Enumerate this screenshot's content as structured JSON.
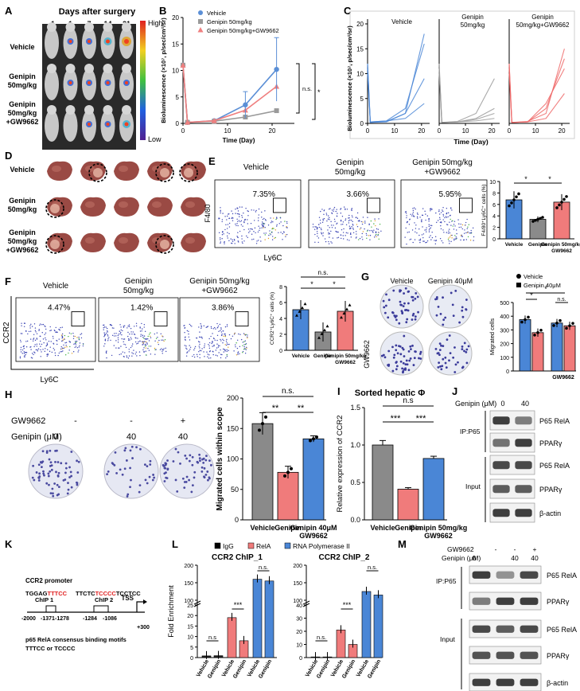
{
  "panels": {
    "A": {
      "letter": "A",
      "header": "Days after surgery",
      "days": [
        "-1",
        "1",
        "7",
        "14",
        "21"
      ],
      "rows": [
        "Vehicle",
        "Genipin\n50mg/kg",
        "Genipin\n50mg/kg\n+GW9662"
      ],
      "scale_high": "High",
      "scale_low": "Low"
    },
    "B": {
      "letter": "B"
    },
    "C": {
      "letter": "C"
    },
    "D": {
      "letter": "D",
      "rows": [
        "Vehicle",
        "Genipin\n50mg/kg",
        "Genipin\n50mg/kg\n+GW9662"
      ]
    },
    "E": {
      "letter": "E",
      "x_axis": "Ly6C",
      "y_axis": "F4/80",
      "groups": [
        "Vehicle",
        "Genipin\n50mg/kg",
        "Genipin 50mg/kg\n+GW9662"
      ],
      "percents": [
        "7.35%",
        "3.66%",
        "5.95%"
      ]
    },
    "F": {
      "letter": "F",
      "x_axis": "Ly6C",
      "y_axis": "CCR2",
      "groups": [
        "Vehicle",
        "Genipin\n50mg/kg",
        "Genipin 50mg/kg\n+GW9662"
      ],
      "percents": [
        "4.47%",
        "1.42%",
        "3.86%"
      ]
    },
    "G": {
      "letter": "G",
      "col_labels": [
        "Vehicle",
        "Genipin 40μM"
      ],
      "row_label": "GW9662"
    },
    "H": {
      "letter": "H",
      "gw_label": "GW9662",
      "genipin_label": "Genipin (μM)",
      "gw_values": [
        "-",
        "-",
        "+"
      ],
      "genipin_values": [
        "0",
        "40",
        "40"
      ]
    },
    "I": {
      "letter": "I"
    },
    "J": {
      "letter": "J",
      "genipin_label": "Genipin (μM)",
      "lanes": [
        "0",
        "40"
      ],
      "ip_label": "IP:P65",
      "input_label": "Input",
      "bands": [
        "P65 RelA",
        "PPARγ",
        "P65 RelA",
        "PPARγ",
        "β-actin"
      ]
    },
    "K": {
      "letter": "K",
      "promoter": "CCR2 promoter",
      "chip1_seq_a": "TGGAG",
      "chip1_seq_b": "TTTCC",
      "chip1_label": "ChIP 1",
      "chip2_seq_a": "TTCTC",
      "chip2_seq_b": "TCCCC",
      "chip2_seq_c": "TCCTCC",
      "chip2_label": "ChIP 2",
      "tss": "TSS",
      "positions": [
        "-2000",
        "-1371",
        "-1278",
        "-1284",
        "-1086",
        "+300"
      ],
      "motif_line1": "p65 RelA consensus binding motifs",
      "motif_line2": "TTTCC or TCCCC"
    },
    "L": {
      "letter": "L"
    },
    "M": {
      "letter": "M",
      "gw_label": "GW9662",
      "genipin_label": "Genipin (μM)",
      "gw_values": [
        "-",
        "-",
        "+"
      ],
      "genipin_values": [
        "0",
        "40",
        "40"
      ],
      "ip_label": "IP:P65",
      "input_label": "Input",
      "bands": [
        "P65 RelA",
        "PPARγ",
        "P65 RelA",
        "PPARγ",
        "β-actin"
      ]
    }
  },
  "colors": {
    "vehicle": "#5b8fd6",
    "genipin": "#9a9a9a",
    "gw": "#ef7f7f",
    "blue_bar": "#4a86d6",
    "red_bar": "#f07b7b",
    "grey_bar": "#8a8a8a"
  },
  "chart_data": [
    {
      "id": "B",
      "type": "line",
      "xlabel": "Time (Day)",
      "ylabel": "Bioluminescence (×10⁷, p/sec/cm²/sr)",
      "xlim": [
        0,
        25
      ],
      "ylim": [
        0,
        20
      ],
      "x_ticks": [
        "0",
        "10",
        "20"
      ],
      "y_ticks": [
        "0",
        "5",
        "10",
        "15",
        "20"
      ],
      "x": [
        0,
        1,
        7,
        14,
        21
      ],
      "series": [
        {
          "name": "Vehicle",
          "values": [
            11,
            0.2,
            0.5,
            3.5,
            10.2
          ]
        },
        {
          "name": "Genipin 50mg/kg",
          "values": [
            11,
            0.2,
            0.4,
            1.2,
            2.4
          ]
        },
        {
          "name": "Genipin 50mg/kg+GW9662",
          "values": [
            11,
            0.2,
            0.5,
            2.5,
            7.0
          ]
        }
      ],
      "annotations": [
        "n.s.",
        "*"
      ]
    },
    {
      "id": "C",
      "type": "line",
      "ylabel": "Bioluminescence (×10⁷, p/sec/cm²/sr)",
      "xlabel": "Time (Day)",
      "ylim": [
        0,
        20
      ],
      "y_ticks": [
        "0",
        "5",
        "10",
        "15",
        "20"
      ],
      "x_ticks": [
        "0",
        "10",
        "20"
      ],
      "subplots": [
        {
          "title": "Vehicle",
          "lines": [
            [
              12,
              0.3,
              0.5,
              1,
              4
            ],
            [
              11,
              0.2,
              0.4,
              2,
              9
            ],
            [
              10,
              0.3,
              0.5,
              3,
              16
            ],
            [
              12,
              0.2,
              0.3,
              2,
              18
            ]
          ]
        },
        {
          "title": "Genipin\n50mg/kg",
          "lines": [
            [
              12,
              0.2,
              0.3,
              0.5,
              1
            ],
            [
              11,
              0.2,
              0.3,
              0.8,
              2
            ],
            [
              10,
              0.2,
              0.3,
              1,
              3
            ],
            [
              11,
              0.2,
              0.4,
              2,
              9
            ]
          ]
        },
        {
          "title": "Genipin\n50mg/kg+GW9662",
          "lines": [
            [
              12,
              0.2,
              0.3,
              1,
              6
            ],
            [
              11,
              0.2,
              0.3,
              3,
              13
            ],
            [
              10,
              0.2,
              0.4,
              2,
              15
            ],
            [
              12,
              0.2,
              0.3,
              4,
              11
            ]
          ]
        }
      ],
      "x": [
        0,
        1,
        7,
        14,
        21
      ]
    },
    {
      "id": "E",
      "type": "bar",
      "ylabel": "F4/80⁺Ly6C⁺ cells (%)",
      "ylim": [
        0,
        10
      ],
      "y_ticks": [
        "0",
        "2",
        "4",
        "6",
        "8",
        "10"
      ],
      "categories": [
        "Vehicle",
        "Genipin",
        "Genipin 50mg/kg\nGW9662"
      ],
      "values": [
        6.8,
        3.4,
        6.4
      ],
      "errors": [
        1.5,
        0.5,
        1.4
      ],
      "sig": [
        "*",
        "*"
      ]
    },
    {
      "id": "F",
      "type": "bar",
      "ylabel": "CCR2⁺Ly6C⁺ cells (%)",
      "ylim": [
        0,
        8
      ],
      "y_ticks": [
        "0",
        "2",
        "4",
        "6",
        "8"
      ],
      "categories": [
        "Vehicle",
        "Genipin",
        "Genipin 50mg/kg\nGW9662"
      ],
      "values": [
        5.1,
        2.3,
        4.9
      ],
      "errors": [
        1.2,
        1.2,
        1.3
      ],
      "sig": [
        "*",
        "*",
        "n.s."
      ]
    },
    {
      "id": "G",
      "type": "bar",
      "ylabel": "Migrated cells",
      "ylim": [
        0,
        500
      ],
      "y_ticks": [
        "0",
        "100",
        "200",
        "300",
        "400",
        "500"
      ],
      "legend": [
        "Vehicle",
        "Genipin 40μM"
      ],
      "categories": [
        "",
        "GW9662"
      ],
      "series": [
        {
          "name": "Vehicle",
          "values": [
            375,
            350
          ]
        },
        {
          "name": "Genipin 40μM",
          "values": [
            280,
            330
          ]
        }
      ],
      "sig": [
        "*",
        "*",
        "n.s."
      ]
    },
    {
      "id": "H",
      "type": "bar",
      "ylabel": "Migrated cells within scope",
      "ylim": [
        0,
        200
      ],
      "y_ticks": [
        "0",
        "50",
        "100",
        "150",
        "200"
      ],
      "categories": [
        "Vehicle",
        "Genipin",
        "Genipin 40μM\nGW9662"
      ],
      "values": [
        158,
        78,
        133
      ],
      "errors": [
        18,
        10,
        5
      ],
      "sig": [
        "**",
        "**",
        "n.s."
      ]
    },
    {
      "id": "I",
      "type": "bar",
      "title": "Sorted hepatic Φ",
      "ylabel": "Relative expression of CCR2",
      "ylim": [
        0,
        1.5
      ],
      "y_ticks": [
        "0.0",
        "0.5",
        "1.0",
        "1.5"
      ],
      "categories": [
        "Vehicle",
        "Genipin",
        "Genipin 50mg/kg\nGW9662"
      ],
      "values": [
        1.0,
        0.41,
        0.82
      ],
      "errors": [
        0.06,
        0.02,
        0.03
      ],
      "sig": [
        "***",
        "***",
        "n.s"
      ]
    },
    {
      "id": "L",
      "type": "bar",
      "ylabel": "Fold Enrichment",
      "legend": [
        "IgG",
        "RelA",
        "RNA Polymerase II"
      ],
      "charts": [
        {
          "title": "CCR2 ChIP_1",
          "y_ticks": [
            "0",
            "5",
            "10",
            "15",
            "20",
            "25",
            "100",
            "150",
            "200"
          ],
          "categories": [
            "Vehicle",
            "Genipin",
            "Vehicle",
            "Genipin",
            "Vehicle",
            "Genipin"
          ],
          "values": [
            0.8,
            0.9,
            19,
            8,
            160,
            155
          ],
          "sig": [
            "n.s",
            "***",
            "n.s."
          ]
        },
        {
          "title": "CCR2 ChIP_2",
          "y_ticks": [
            "0",
            "10",
            "20",
            "30",
            "40",
            "100",
            "150",
            "200"
          ],
          "categories": [
            "Vehicle",
            "Genipin",
            "Vehicle",
            "Genipin",
            "Vehicle",
            "Genipin"
          ],
          "values": [
            0.5,
            0.5,
            21,
            10,
            125,
            115
          ],
          "sig": [
            "n.s.",
            "***",
            "n.s."
          ]
        }
      ]
    }
  ]
}
